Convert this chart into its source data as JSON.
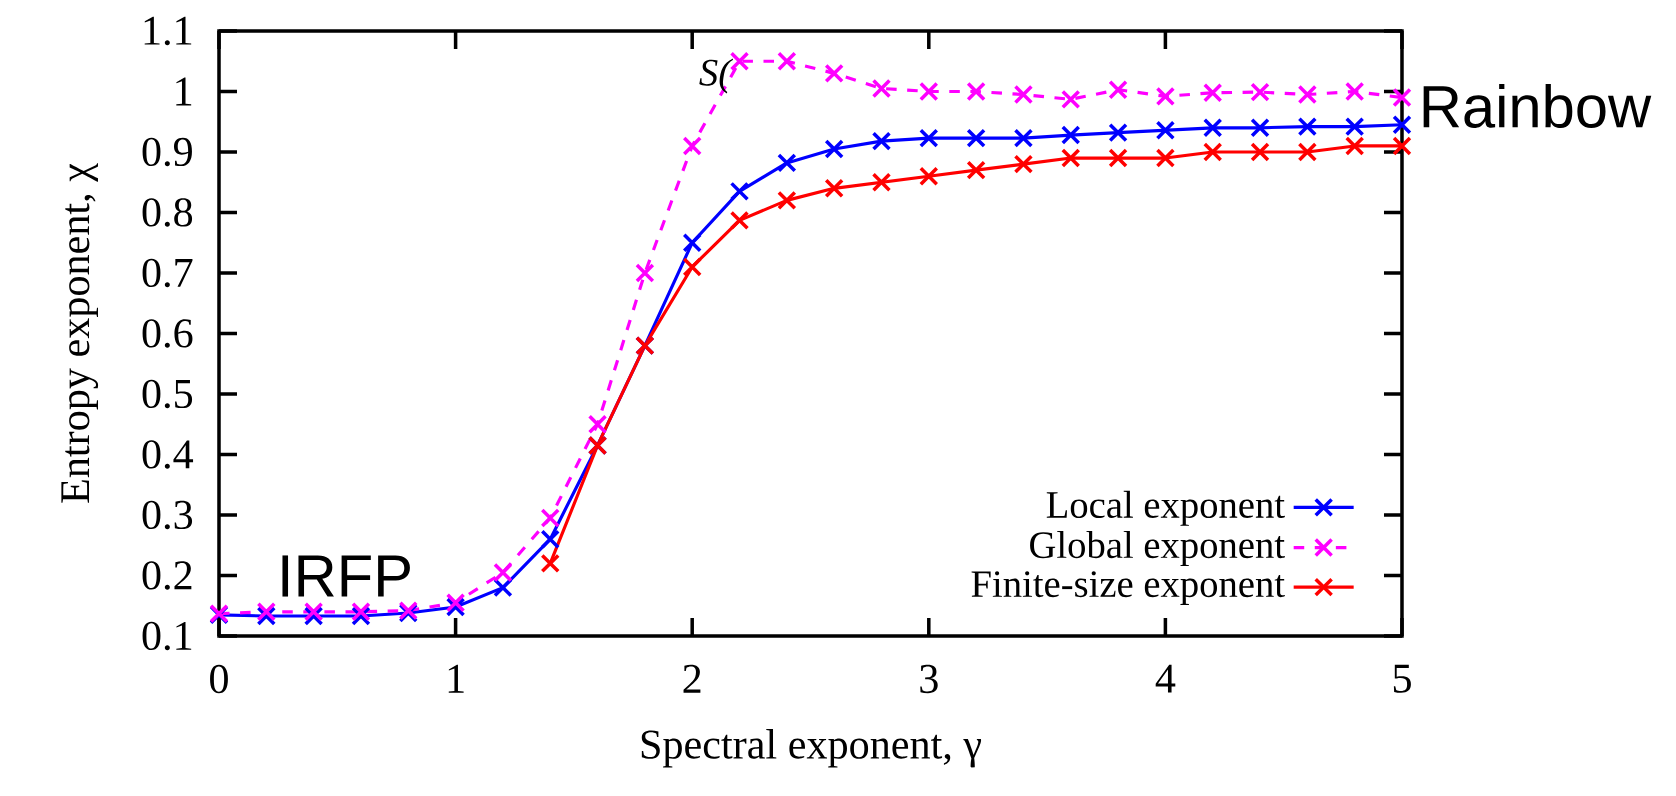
{
  "chart_data": {
    "type": "line",
    "xlabel": "Spectral exponent, γ",
    "ylabel": "Entropy exponent, χ",
    "x": [
      0,
      0.2,
      0.4,
      0.6,
      0.8,
      1.0,
      1.2,
      1.4,
      1.6,
      1.8,
      2.0,
      2.2,
      2.4,
      2.6,
      2.8,
      3.0,
      3.2,
      3.4,
      3.6,
      3.8,
      4.0,
      4.2,
      4.4,
      4.6,
      4.8,
      5.0
    ],
    "series": [
      {
        "name": "Local exponent",
        "color": "#0000ff",
        "marker": "cross",
        "line_style": "solid",
        "values": [
          0.135,
          0.133,
          0.133,
          0.133,
          0.138,
          0.148,
          0.18,
          0.26,
          0.415,
          0.58,
          0.75,
          0.835,
          0.882,
          0.905,
          0.918,
          0.923,
          0.923,
          0.923,
          0.928,
          0.932,
          0.936,
          0.94,
          0.94,
          0.942,
          0.942,
          0.945
        ]
      },
      {
        "name": "Global exponent",
        "color": "#ff00ff",
        "marker": "cross",
        "line_style": "dashed",
        "values": [
          0.137,
          0.14,
          0.14,
          0.14,
          0.142,
          0.155,
          0.205,
          0.295,
          0.45,
          0.7,
          0.91,
          1.05,
          1.05,
          1.03,
          1.005,
          1.0,
          1.0,
          0.995,
          0.987,
          1.003,
          0.992,
          0.998,
          0.999,
          0.995,
          1.0,
          0.99
        ]
      },
      {
        "name": "Finite-size exponent",
        "color": "#ff0000",
        "marker": "cross",
        "line_style": "solid",
        "x": [
          1.4,
          1.6,
          1.8,
          2.0,
          2.2,
          2.4,
          2.6,
          2.8,
          3.0,
          3.2,
          3.4,
          3.6,
          3.8,
          4.0,
          4.2,
          4.4,
          4.6,
          4.8,
          5.0
        ],
        "values": [
          0.22,
          0.415,
          0.58,
          0.71,
          0.787,
          0.82,
          0.84,
          0.85,
          0.86,
          0.87,
          0.88,
          0.89,
          0.89,
          0.89,
          0.9,
          0.9,
          0.9,
          0.91,
          0.91
        ]
      }
    ],
    "xlim": [
      0,
      5
    ],
    "ylim": [
      0.1,
      1.1
    ],
    "xticks": [
      0,
      1,
      2,
      3,
      4,
      5
    ],
    "yticks": [
      0.1,
      0.2,
      0.3,
      0.4,
      0.5,
      0.6,
      0.7,
      0.8,
      0.9,
      {
        "value": 1.0,
        "label": "1"
      },
      1.1
    ],
    "legend": "bottom right",
    "grid": false,
    "annotations": [
      "S(",
      "IRFP",
      "Rainbow"
    ]
  }
}
